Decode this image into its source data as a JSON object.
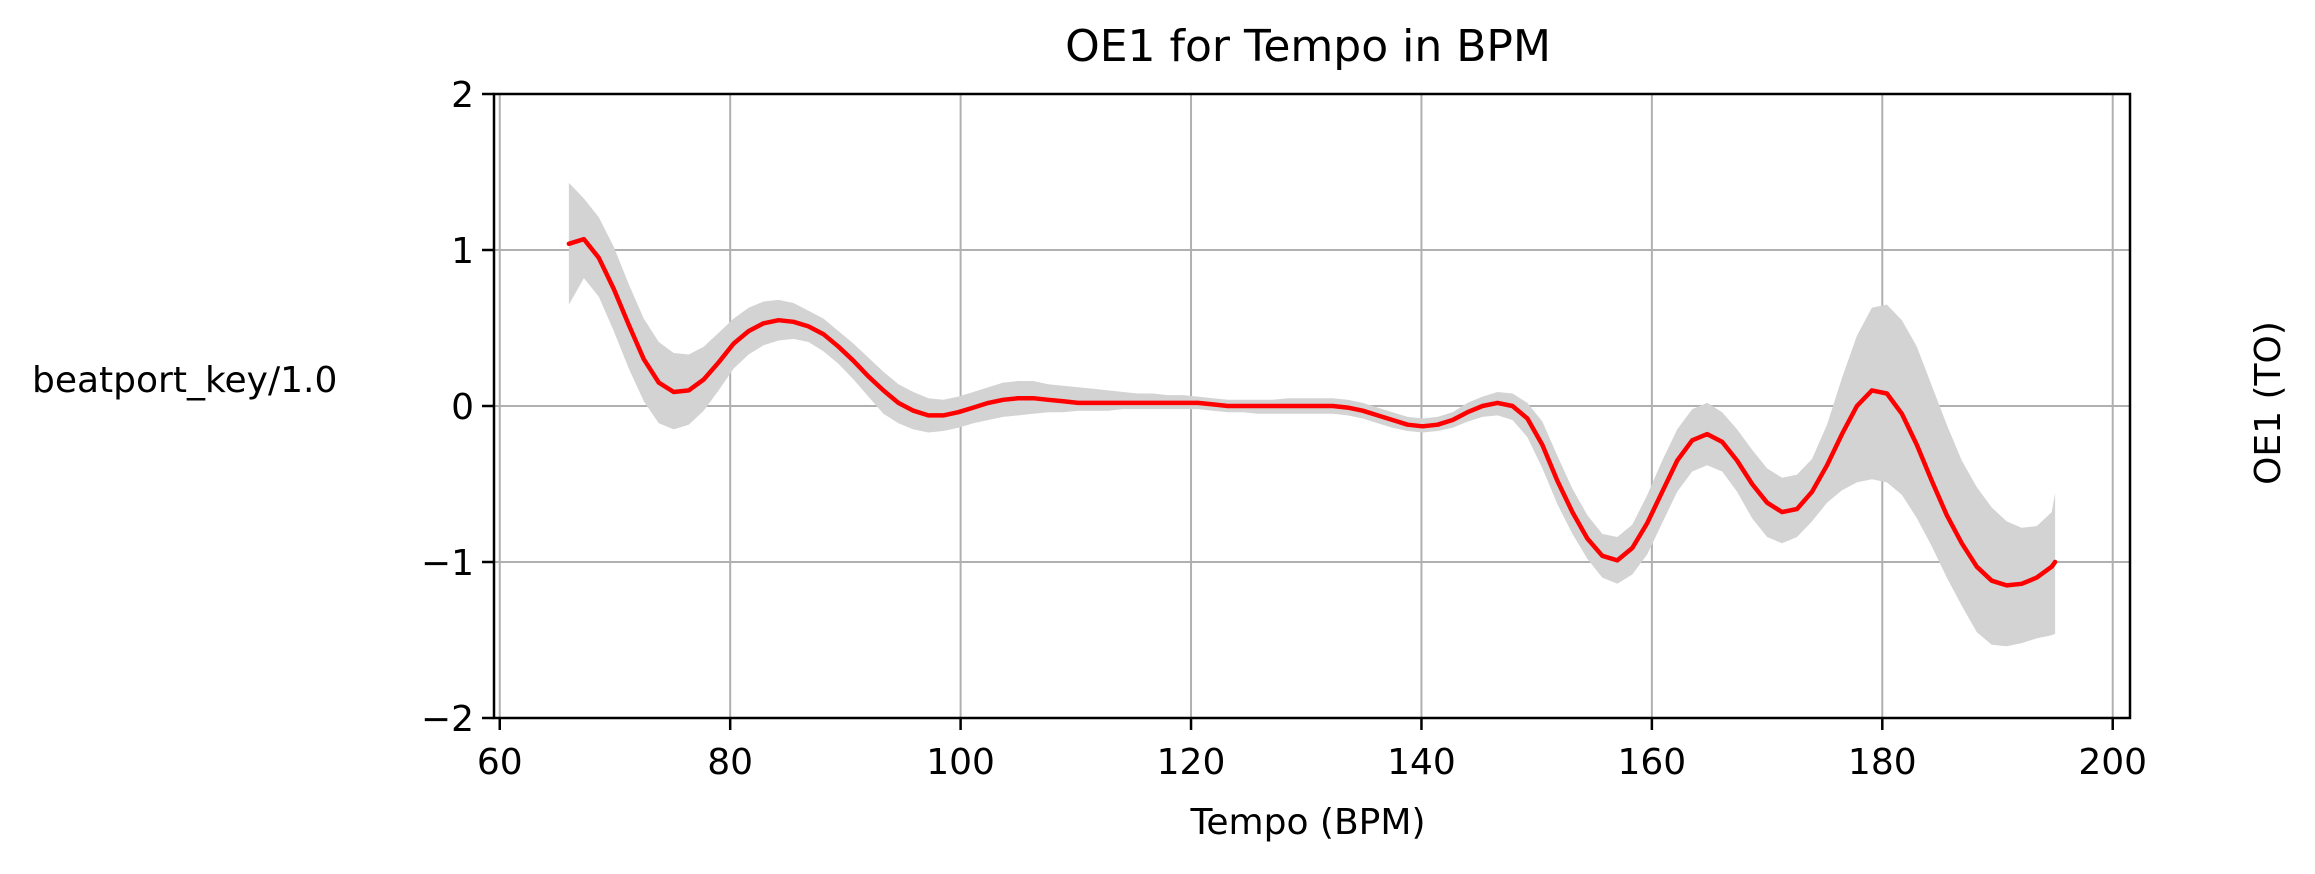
{
  "chart_data": {
    "type": "line",
    "title": "OE1 for Tempo in BPM",
    "xlabel": "Tempo (BPM)",
    "ylabel": "beatport_key/1.0",
    "ylabel_right": "OE1 (TO)",
    "xlim": [
      59.5,
      201.5
    ],
    "ylim": [
      -2,
      2
    ],
    "xticks": [
      60,
      80,
      100,
      120,
      140,
      160,
      180,
      200
    ],
    "yticks": [
      -2,
      -1,
      0,
      1,
      2
    ],
    "xtick_labels": [
      "60",
      "80",
      "100",
      "120",
      "140",
      "160",
      "180",
      "200"
    ],
    "ytick_labels": [
      "−2",
      "−1",
      "0",
      "1",
      "2"
    ],
    "grid": true,
    "colors": {
      "line": "#ff0000",
      "band": "#d3d3d3",
      "grid": "#b0b0b0",
      "axes": "#000000"
    },
    "series": [
      {
        "x": [
          66,
          67.3,
          68.6,
          69.9,
          71.2,
          72.5,
          73.8,
          75.1,
          76.4,
          77.7,
          79,
          80.3,
          81.6,
          82.9,
          84.2,
          85.5,
          86.8,
          88.1,
          89.4,
          90.7,
          92,
          93.3,
          94.6,
          95.9,
          97.2,
          98.5,
          99.8,
          101.1,
          102.4,
          103.7,
          105,
          106.3,
          107.6,
          108.9,
          110.2,
          111.5,
          112.8,
          114.1,
          115.4,
          116.7,
          118,
          119.3,
          120.6,
          121.9,
          123.2,
          124.5,
          125.8,
          127.1,
          128.4,
          129.7,
          131,
          132.3,
          133.6,
          134.9,
          136.2,
          137.5,
          138.8,
          140.1,
          141.4,
          142.7,
          144,
          145.3,
          146.6,
          147.9,
          149.2,
          150.5,
          151.8,
          153.1,
          154.4,
          155.7,
          157,
          158.3,
          159.6,
          160.9,
          162.2,
          163.5,
          164.8,
          166.1,
          167.4,
          168.7,
          170,
          171.3,
          172.6,
          173.9,
          175.2,
          176.5,
          177.8,
          179.1,
          180.4,
          181.7,
          183,
          184.3,
          185.6,
          186.9,
          188.2,
          189.5,
          190.8,
          192.1,
          193.4,
          194.7,
          195
        ],
        "y": [
          1.04,
          1.07,
          0.95,
          0.75,
          0.52,
          0.3,
          0.15,
          0.09,
          0.1,
          0.17,
          0.28,
          0.4,
          0.48,
          0.53,
          0.55,
          0.54,
          0.51,
          0.46,
          0.38,
          0.29,
          0.19,
          0.1,
          0.02,
          -0.03,
          -0.06,
          -0.06,
          -0.04,
          -0.01,
          0.02,
          0.04,
          0.05,
          0.05,
          0.04,
          0.03,
          0.02,
          0.02,
          0.02,
          0.02,
          0.02,
          0.02,
          0.02,
          0.02,
          0.02,
          0.01,
          0.0,
          0.0,
          0.0,
          0.0,
          0.0,
          0.0,
          0.0,
          0.0,
          -0.01,
          -0.03,
          -0.06,
          -0.09,
          -0.12,
          -0.13,
          -0.12,
          -0.09,
          -0.04,
          0.0,
          0.02,
          0.0,
          -0.08,
          -0.25,
          -0.48,
          -0.68,
          -0.85,
          -0.96,
          -0.99,
          -0.91,
          -0.75,
          -0.55,
          -0.35,
          -0.22,
          -0.18,
          -0.23,
          -0.35,
          -0.5,
          -0.62,
          -0.68,
          -0.66,
          -0.55,
          -0.38,
          -0.18,
          0.0,
          0.1,
          0.08,
          -0.05,
          -0.25,
          -0.48,
          -0.7,
          -0.88,
          -1.03,
          -1.12,
          -1.15,
          -1.14,
          -1.1,
          -1.03,
          -1.0
        ],
        "lower": [
          0.65,
          0.82,
          0.7,
          0.48,
          0.24,
          0.03,
          -0.11,
          -0.15,
          -0.12,
          -0.03,
          0.1,
          0.24,
          0.33,
          0.39,
          0.42,
          0.43,
          0.41,
          0.35,
          0.27,
          0.17,
          0.06,
          -0.05,
          -0.11,
          -0.15,
          -0.17,
          -0.16,
          -0.14,
          -0.11,
          -0.09,
          -0.07,
          -0.06,
          -0.05,
          -0.04,
          -0.04,
          -0.03,
          -0.03,
          -0.03,
          -0.02,
          -0.02,
          -0.02,
          -0.02,
          -0.02,
          -0.02,
          -0.03,
          -0.04,
          -0.04,
          -0.05,
          -0.05,
          -0.05,
          -0.05,
          -0.05,
          -0.05,
          -0.06,
          -0.08,
          -0.11,
          -0.14,
          -0.16,
          -0.17,
          -0.16,
          -0.14,
          -0.1,
          -0.07,
          -0.06,
          -0.09,
          -0.2,
          -0.4,
          -0.63,
          -0.82,
          -0.98,
          -1.1,
          -1.14,
          -1.08,
          -0.95,
          -0.75,
          -0.55,
          -0.42,
          -0.38,
          -0.42,
          -0.55,
          -0.72,
          -0.84,
          -0.88,
          -0.84,
          -0.74,
          -0.62,
          -0.54,
          -0.49,
          -0.47,
          -0.49,
          -0.57,
          -0.72,
          -0.9,
          -1.1,
          -1.28,
          -1.45,
          -1.53,
          -1.54,
          -1.52,
          -1.49,
          -1.47,
          -1.46
        ],
        "upper": [
          1.43,
          1.33,
          1.21,
          1.02,
          0.78,
          0.56,
          0.41,
          0.34,
          0.33,
          0.38,
          0.47,
          0.56,
          0.63,
          0.67,
          0.68,
          0.66,
          0.61,
          0.56,
          0.48,
          0.4,
          0.31,
          0.22,
          0.14,
          0.09,
          0.05,
          0.04,
          0.06,
          0.09,
          0.12,
          0.15,
          0.16,
          0.16,
          0.14,
          0.13,
          0.12,
          0.11,
          0.1,
          0.09,
          0.08,
          0.08,
          0.07,
          0.07,
          0.06,
          0.05,
          0.04,
          0.04,
          0.04,
          0.04,
          0.05,
          0.05,
          0.05,
          0.05,
          0.04,
          0.02,
          -0.01,
          -0.04,
          -0.07,
          -0.08,
          -0.07,
          -0.04,
          0.02,
          0.06,
          0.09,
          0.08,
          0.02,
          -0.1,
          -0.32,
          -0.53,
          -0.7,
          -0.82,
          -0.84,
          -0.76,
          -0.57,
          -0.35,
          -0.15,
          -0.02,
          0.02,
          -0.04,
          -0.15,
          -0.28,
          -0.4,
          -0.46,
          -0.44,
          -0.34,
          -0.12,
          0.18,
          0.45,
          0.63,
          0.65,
          0.55,
          0.38,
          0.13,
          -0.12,
          -0.35,
          -0.52,
          -0.65,
          -0.74,
          -0.78,
          -0.77,
          -0.68,
          -0.56
        ]
      }
    ]
  }
}
